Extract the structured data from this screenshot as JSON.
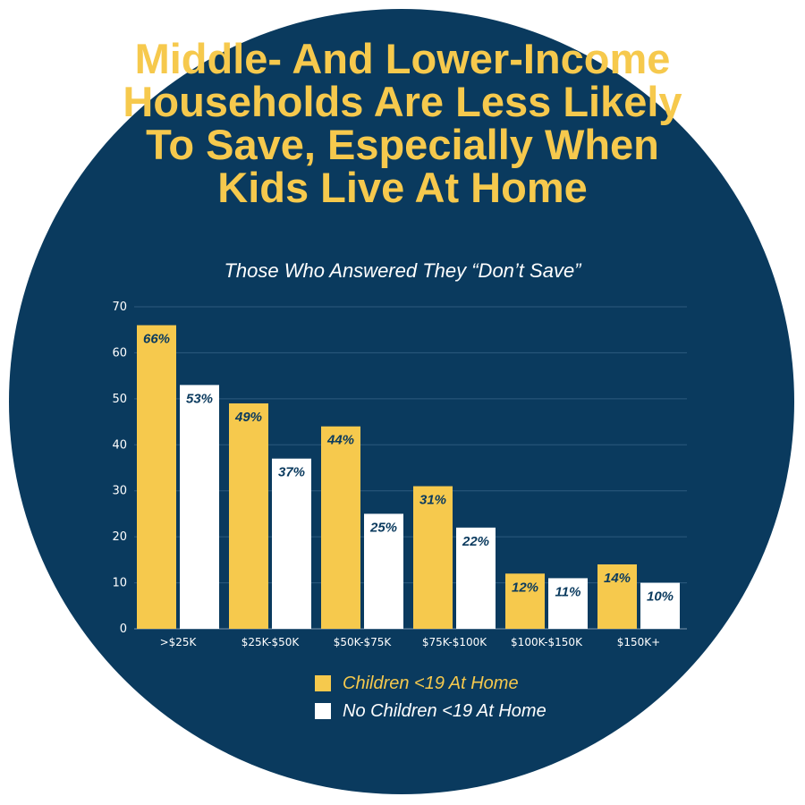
{
  "colors": {
    "background": "#0a3a5e",
    "accent": "#f6c94d",
    "secondary": "#ffffff",
    "grid": "#2d5a7e"
  },
  "chart_data": {
    "type": "bar",
    "title": "Middle- And Lower-Income Households Are Less Likely To Save, Especially When Kids Live At Home",
    "subtitle": "Those Who Answered They “Don’t Save”",
    "categories": [
      ">$25K",
      "$25K-$50K",
      "$50K-$75K",
      "$75K-$100K",
      "$100K-$150K",
      "$150K+"
    ],
    "series": [
      {
        "name": "Children <19 At Home",
        "color": "#f6c94d",
        "values": [
          66,
          49,
          44,
          31,
          12,
          14
        ],
        "labels": [
          "66%",
          "49%",
          "44%",
          "31%",
          "12%",
          "14%"
        ]
      },
      {
        "name": "No Children <19 At Home",
        "color": "#ffffff",
        "values": [
          53,
          37,
          25,
          22,
          11,
          10
        ],
        "labels": [
          "53%",
          "37%",
          "25%",
          "22%",
          "11%",
          "10%"
        ]
      }
    ],
    "ylim": [
      0,
      70
    ],
    "yticks": [
      "0",
      "10",
      "20",
      "30",
      "40",
      "50",
      "60",
      "70"
    ],
    "grid": true,
    "legend": "bottom",
    "xlabel": "",
    "ylabel": ""
  }
}
